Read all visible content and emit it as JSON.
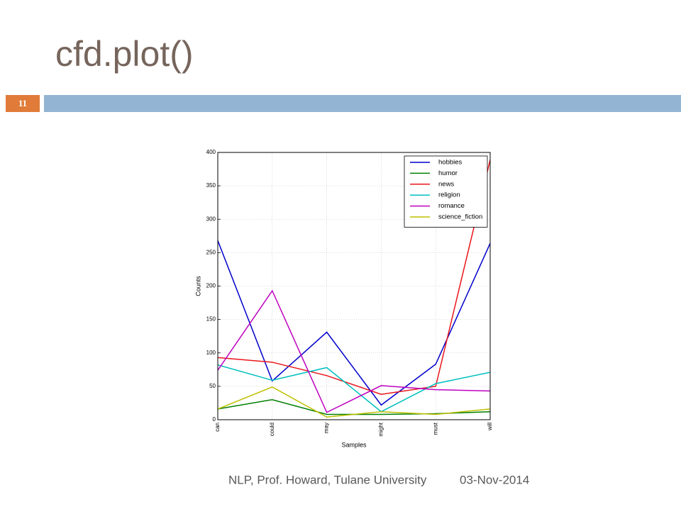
{
  "slide": {
    "title": "cfd.plot()",
    "page_number": "11",
    "footer": "NLP, Prof. Howard, Tulane University",
    "date": "03-Nov-2014"
  },
  "chart_data": {
    "type": "line",
    "x_label": "Samples",
    "y_label": "Counts",
    "categories": [
      "can",
      "could",
      "may",
      "might",
      "must",
      "will"
    ],
    "series": [
      {
        "name": "hobbies",
        "color": "#0000cc",
        "values": [
          268,
          58,
          131,
          22,
          83,
          264
        ]
      },
      {
        "name": "humor",
        "color": "#007f00",
        "values": [
          16,
          30,
          8,
          8,
          9,
          12
        ]
      },
      {
        "name": "news",
        "color": "#e8151b",
        "values": [
          93,
          86,
          66,
          38,
          50,
          389
        ]
      },
      {
        "name": "religion",
        "color": "#00bfbf",
        "values": [
          82,
          59,
          78,
          12,
          54,
          71
        ]
      },
      {
        "name": "romance",
        "color": "#bf00bf",
        "values": [
          74,
          193,
          11,
          51,
          45,
          43
        ]
      },
      {
        "name": "science_fiction",
        "color": "#bfbf00",
        "values": [
          16,
          49,
          4,
          12,
          8,
          16
        ]
      }
    ],
    "ylim": [
      0,
      400
    ],
    "yticks": [
      0,
      50,
      100,
      150,
      200,
      250,
      300,
      350,
      400
    ],
    "grid": true,
    "legend": "upper-right"
  }
}
